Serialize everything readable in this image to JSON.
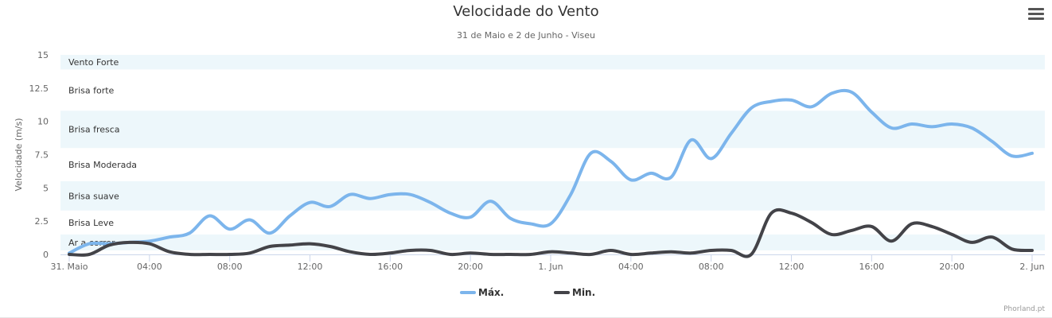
{
  "header": {
    "title": "Velocidade do Vento",
    "subtitle": "31 de Maio e 2 de Junho - Viseu"
  },
  "credit": "Phorland.pt",
  "menu_icon": "hamburger-menu-icon",
  "chart_data": {
    "type": "line",
    "title": "Velocidade do Vento",
    "subtitle": "31 de Maio e 2 de Junho - Viseu",
    "ylabel": "Velocidade (m/s)",
    "xlabel": "",
    "ylim": [
      0,
      15
    ],
    "yticks": [
      "0",
      "2.5",
      "5",
      "7.5",
      "10",
      "12.5",
      "15"
    ],
    "ytick_values": [
      0,
      2.5,
      5,
      7.5,
      10,
      12.5,
      15
    ],
    "xlim": [
      0,
      48
    ],
    "xticks": [
      "31. Maio",
      "04:00",
      "08:00",
      "12:00",
      "16:00",
      "20:00",
      "1. Jun",
      "04:00",
      "08:00",
      "12:00",
      "16:00",
      "20:00",
      "2. Jun"
    ],
    "xtick_values": [
      0,
      4,
      8,
      12,
      16,
      20,
      24,
      28,
      32,
      36,
      40,
      44,
      48
    ],
    "grid": false,
    "legend_position": "bottom-center",
    "plot_bands": [
      {
        "label": "Ar a correr",
        "from": 0.3,
        "to": 1.5,
        "shaded": true
      },
      {
        "label": "Brisa Leve",
        "from": 1.5,
        "to": 3.3,
        "shaded": false
      },
      {
        "label": "Brisa suave",
        "from": 3.3,
        "to": 5.5,
        "shaded": true
      },
      {
        "label": "Brisa Moderada",
        "from": 5.5,
        "to": 8.0,
        "shaded": false
      },
      {
        "label": "Brisa fresca",
        "from": 8.0,
        "to": 10.8,
        "shaded": true
      },
      {
        "label": "Brisa forte",
        "from": 10.8,
        "to": 13.9,
        "shaded": false
      },
      {
        "label": "Vento Forte",
        "from": 13.9,
        "to": 15.0,
        "shaded": true
      }
    ],
    "band_color": "#edf7fb",
    "series": [
      {
        "name": "Máx.",
        "color": "#7cb5ec",
        "x": [
          0,
          1,
          2,
          3,
          4,
          5,
          6,
          7,
          8,
          9,
          10,
          11,
          12,
          13,
          14,
          15,
          16,
          17,
          18,
          19,
          20,
          21,
          22,
          23,
          24,
          25,
          26,
          27,
          28,
          29,
          30,
          31,
          32,
          33,
          34,
          35,
          36,
          37,
          38,
          39,
          40,
          41,
          42,
          43,
          44,
          45,
          46,
          47,
          48
        ],
        "values": [
          0.1,
          0.8,
          0.8,
          0.9,
          1.0,
          1.3,
          1.6,
          2.9,
          1.9,
          2.6,
          1.6,
          2.9,
          3.9,
          3.6,
          4.5,
          4.2,
          4.5,
          4.5,
          3.9,
          3.1,
          2.8,
          4.0,
          2.7,
          2.3,
          2.3,
          4.5,
          7.6,
          7.0,
          5.6,
          6.1,
          5.8,
          8.6,
          7.2,
          9.1,
          11.0,
          11.5,
          11.6,
          11.1,
          12.1,
          12.2,
          10.7,
          9.5,
          9.8,
          9.6,
          9.8,
          9.5,
          8.5,
          7.4,
          7.6
        ]
      },
      {
        "name": "Min.",
        "color": "#434348",
        "x": [
          0,
          1,
          2,
          3,
          4,
          5,
          6,
          7,
          8,
          9,
          10,
          11,
          12,
          13,
          14,
          15,
          16,
          17,
          18,
          19,
          20,
          21,
          22,
          23,
          24,
          25,
          26,
          27,
          28,
          29,
          30,
          31,
          32,
          33,
          34,
          35,
          36,
          37,
          38,
          39,
          40,
          41,
          42,
          43,
          44,
          45,
          46,
          47,
          48
        ],
        "values": [
          0,
          0,
          0.7,
          0.9,
          0.8,
          0.2,
          0,
          0,
          0,
          0.1,
          0.6,
          0.7,
          0.8,
          0.6,
          0.2,
          0,
          0.1,
          0.3,
          0.3,
          0,
          0.1,
          0,
          0,
          0,
          0.2,
          0.1,
          0,
          0.3,
          0,
          0.1,
          0.2,
          0.1,
          0.3,
          0.3,
          0,
          3.1,
          3.1,
          2.4,
          1.5,
          1.8,
          2.1,
          1.0,
          2.3,
          2.1,
          1.5,
          0.9,
          1.3,
          0.4,
          0.3
        ]
      }
    ]
  }
}
